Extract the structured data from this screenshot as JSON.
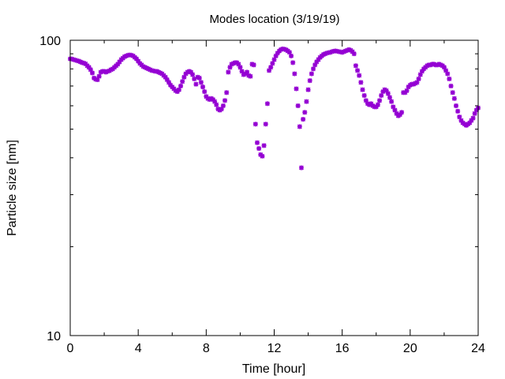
{
  "chart_data": {
    "type": "scatter",
    "title": "Modes location (3/19/19)",
    "xlabel": "Time [hour]",
    "ylabel": "Particle size [nm]",
    "xlim": [
      0,
      24
    ],
    "ylim": [
      10,
      100
    ],
    "yscale": "log",
    "grid": false,
    "xticks": [
      0,
      4,
      8,
      12,
      16,
      20,
      24
    ],
    "xtick_labels": [
      "0",
      "4",
      "8",
      "12",
      "16",
      "20",
      "24"
    ],
    "yticks": [
      10,
      100
    ],
    "ytick_labels": [
      "10",
      "100"
    ],
    "marker_color": "#9400d3",
    "series": [
      {
        "points": [
          [
            0.0,
            86.5
          ],
          [
            0.1,
            86.4
          ],
          [
            0.2,
            86.0
          ],
          [
            0.3,
            85.7
          ],
          [
            0.4,
            85.3
          ],
          [
            0.5,
            85.0
          ],
          [
            0.6,
            84.5
          ],
          [
            0.7,
            84.0
          ],
          [
            0.8,
            83.7
          ],
          [
            0.9,
            83.2
          ],
          [
            1.0,
            82.0
          ],
          [
            1.1,
            81.0
          ],
          [
            1.2,
            79.5
          ],
          [
            1.3,
            77.5
          ],
          [
            1.4,
            74.5
          ],
          [
            1.5,
            73.8
          ],
          [
            1.6,
            73.5
          ],
          [
            1.7,
            75.5
          ],
          [
            1.8,
            78.0
          ],
          [
            1.9,
            78.5
          ],
          [
            2.0,
            78.5
          ],
          [
            2.1,
            78.0
          ],
          [
            2.2,
            78.5
          ],
          [
            2.3,
            78.8
          ],
          [
            2.4,
            79.5
          ],
          [
            2.5,
            80.0
          ],
          [
            2.6,
            81.0
          ],
          [
            2.7,
            82.0
          ],
          [
            2.8,
            83.0
          ],
          [
            2.9,
            84.5
          ],
          [
            3.0,
            86.0
          ],
          [
            3.1,
            87.0
          ],
          [
            3.2,
            88.0
          ],
          [
            3.3,
            88.5
          ],
          [
            3.4,
            89.0
          ],
          [
            3.5,
            89.2
          ],
          [
            3.6,
            89.0
          ],
          [
            3.7,
            88.5
          ],
          [
            3.8,
            87.5
          ],
          [
            3.9,
            86.5
          ],
          [
            4.0,
            85.0
          ],
          [
            4.1,
            83.5
          ],
          [
            4.2,
            82.5
          ],
          [
            4.3,
            81.5
          ],
          [
            4.4,
            81.0
          ],
          [
            4.5,
            80.5
          ],
          [
            4.6,
            80.0
          ],
          [
            4.7,
            79.5
          ],
          [
            4.8,
            79.0
          ],
          [
            4.9,
            78.8
          ],
          [
            5.0,
            78.5
          ],
          [
            5.1,
            78.5
          ],
          [
            5.2,
            78.0
          ],
          [
            5.3,
            77.5
          ],
          [
            5.4,
            77.0
          ],
          [
            5.5,
            76.0
          ],
          [
            5.6,
            75.0
          ],
          [
            5.7,
            73.5
          ],
          [
            5.8,
            72.0
          ],
          [
            5.9,
            70.5
          ],
          [
            6.0,
            69.5
          ],
          [
            6.1,
            68.5
          ],
          [
            6.2,
            67.5
          ],
          [
            6.3,
            67.0
          ],
          [
            6.4,
            68.0
          ],
          [
            6.5,
            70.0
          ],
          [
            6.6,
            72.5
          ],
          [
            6.7,
            75.0
          ],
          [
            6.8,
            77.0
          ],
          [
            6.9,
            78.0
          ],
          [
            7.0,
            78.5
          ],
          [
            7.1,
            78.0
          ],
          [
            7.2,
            76.5
          ],
          [
            7.3,
            74.0
          ],
          [
            7.4,
            71.0
          ],
          [
            7.5,
            75.0
          ],
          [
            7.6,
            74.5
          ],
          [
            7.7,
            72.0
          ],
          [
            7.8,
            69.5
          ],
          [
            7.9,
            67.0
          ],
          [
            8.0,
            64.5
          ],
          [
            8.1,
            63.5
          ],
          [
            8.2,
            63.0
          ],
          [
            8.3,
            63.5
          ],
          [
            8.4,
            63.0
          ],
          [
            8.5,
            62.0
          ],
          [
            8.6,
            60.5
          ],
          [
            8.7,
            58.5
          ],
          [
            8.8,
            58.0
          ],
          [
            8.9,
            58.5
          ],
          [
            9.0,
            60.0
          ],
          [
            9.1,
            62.5
          ],
          [
            9.2,
            66.5
          ],
          [
            9.3,
            78.0
          ],
          [
            9.4,
            81.0
          ],
          [
            9.5,
            83.0
          ],
          [
            9.6,
            83.5
          ],
          [
            9.7,
            84.0
          ],
          [
            9.8,
            84.0
          ],
          [
            9.9,
            83.0
          ],
          [
            10.0,
            81.0
          ],
          [
            10.1,
            78.5
          ],
          [
            10.2,
            76.5
          ],
          [
            10.3,
            77.0
          ],
          [
            10.4,
            78.0
          ],
          [
            10.5,
            76.0
          ],
          [
            10.6,
            75.5
          ],
          [
            10.7,
            83.0
          ],
          [
            10.8,
            82.5
          ],
          [
            10.9,
            52.0
          ],
          [
            11.0,
            45.0
          ],
          [
            11.1,
            43.0
          ],
          [
            11.2,
            41.0
          ],
          [
            11.3,
            40.5
          ],
          [
            11.4,
            44.0
          ],
          [
            11.5,
            52.0
          ],
          [
            11.6,
            61.0
          ],
          [
            11.7,
            79.0
          ],
          [
            11.8,
            81.0
          ],
          [
            11.9,
            83.5
          ],
          [
            12.0,
            86.0
          ],
          [
            12.1,
            88.5
          ],
          [
            12.2,
            90.5
          ],
          [
            12.3,
            92.0
          ],
          [
            12.4,
            93.0
          ],
          [
            12.5,
            93.5
          ],
          [
            12.6,
            93.3
          ],
          [
            12.7,
            92.8
          ],
          [
            12.8,
            92.0
          ],
          [
            12.9,
            91.0
          ],
          [
            13.0,
            88.5
          ],
          [
            13.1,
            84.0
          ],
          [
            13.2,
            77.0
          ],
          [
            13.3,
            68.5
          ],
          [
            13.4,
            60.0
          ],
          [
            13.5,
            51.0
          ],
          [
            13.6,
            37.0
          ],
          [
            13.7,
            54.0
          ],
          [
            13.8,
            57.0
          ],
          [
            13.9,
            62.0
          ],
          [
            14.0,
            68.0
          ],
          [
            14.1,
            73.0
          ],
          [
            14.2,
            77.0
          ],
          [
            14.3,
            80.0
          ],
          [
            14.4,
            82.5
          ],
          [
            14.5,
            84.5
          ],
          [
            14.6,
            86.0
          ],
          [
            14.7,
            87.5
          ],
          [
            14.8,
            88.5
          ],
          [
            14.9,
            89.5
          ],
          [
            15.0,
            90.0
          ],
          [
            15.1,
            90.5
          ],
          [
            15.2,
            90.8
          ],
          [
            15.3,
            91.0
          ],
          [
            15.4,
            91.5
          ],
          [
            15.5,
            91.8
          ],
          [
            15.6,
            92.0
          ],
          [
            15.7,
            91.8
          ],
          [
            15.8,
            91.5
          ],
          [
            15.9,
            91.3
          ],
          [
            16.0,
            91.0
          ],
          [
            16.1,
            91.5
          ],
          [
            16.2,
            92.0
          ],
          [
            16.3,
            92.5
          ],
          [
            16.4,
            93.0
          ],
          [
            16.5,
            92.5
          ],
          [
            16.6,
            91.5
          ],
          [
            16.7,
            90.0
          ],
          [
            16.8,
            82.0
          ],
          [
            16.9,
            79.0
          ],
          [
            17.0,
            76.0
          ],
          [
            17.1,
            72.0
          ],
          [
            17.2,
            68.0
          ],
          [
            17.3,
            65.0
          ],
          [
            17.4,
            62.5
          ],
          [
            17.5,
            61.0
          ],
          [
            17.6,
            60.5
          ],
          [
            17.7,
            61.0
          ],
          [
            17.8,
            60.0
          ],
          [
            17.9,
            59.5
          ],
          [
            18.0,
            59.5
          ],
          [
            18.1,
            60.5
          ],
          [
            18.2,
            62.5
          ],
          [
            18.3,
            65.0
          ],
          [
            18.4,
            67.0
          ],
          [
            18.5,
            68.0
          ],
          [
            18.6,
            67.5
          ],
          [
            18.7,
            66.0
          ],
          [
            18.8,
            64.0
          ],
          [
            18.9,
            62.0
          ],
          [
            19.0,
            59.5
          ],
          [
            19.1,
            58.0
          ],
          [
            19.2,
            56.5
          ],
          [
            19.3,
            55.5
          ],
          [
            19.4,
            56.0
          ],
          [
            19.5,
            57.0
          ],
          [
            19.6,
            66.5
          ],
          [
            19.7,
            66.5
          ],
          [
            19.8,
            67.5
          ],
          [
            19.9,
            69.5
          ],
          [
            20.0,
            70.5
          ],
          [
            20.1,
            71.0
          ],
          [
            20.2,
            71.0
          ],
          [
            20.3,
            71.5
          ],
          [
            20.4,
            72.0
          ],
          [
            20.5,
            74.0
          ],
          [
            20.6,
            76.5
          ],
          [
            20.7,
            78.5
          ],
          [
            20.8,
            80.0
          ],
          [
            20.9,
            81.0
          ],
          [
            21.0,
            82.0
          ],
          [
            21.1,
            82.5
          ],
          [
            21.2,
            82.5
          ],
          [
            21.3,
            83.0
          ],
          [
            21.4,
            83.0
          ],
          [
            21.5,
            82.5
          ],
          [
            21.6,
            82.5
          ],
          [
            21.7,
            83.0
          ],
          [
            21.8,
            82.5
          ],
          [
            21.9,
            82.0
          ],
          [
            22.0,
            81.0
          ],
          [
            22.1,
            79.0
          ],
          [
            22.2,
            77.0
          ],
          [
            22.3,
            74.0
          ],
          [
            22.4,
            70.0
          ],
          [
            22.5,
            66.5
          ],
          [
            22.6,
            63.5
          ],
          [
            22.7,
            60.0
          ],
          [
            22.8,
            57.5
          ],
          [
            22.9,
            55.0
          ],
          [
            23.0,
            53.5
          ],
          [
            23.1,
            52.5
          ],
          [
            23.2,
            52.0
          ],
          [
            23.3,
            51.5
          ],
          [
            23.4,
            52.0
          ],
          [
            23.5,
            52.5
          ],
          [
            23.6,
            53.5
          ],
          [
            23.7,
            54.5
          ],
          [
            23.8,
            56.5
          ],
          [
            23.9,
            58.0
          ],
          [
            24.0,
            59.0
          ]
        ]
      }
    ]
  }
}
